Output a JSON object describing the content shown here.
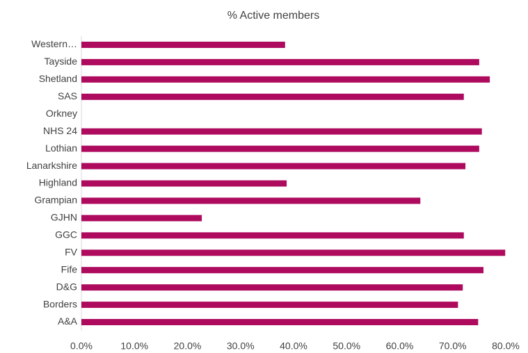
{
  "chart_data": {
    "type": "barh",
    "title": "% Active members",
    "categories": [
      "Western…",
      "Tayside",
      "Shetland",
      "SAS",
      "Orkney",
      "NHS 24",
      "Lothian",
      "Lanarkshire",
      "Highland",
      "Grampian",
      "GJHN",
      "GGC",
      "FV",
      "Fife",
      "D&G",
      "Borders",
      "A&A"
    ],
    "values": [
      38.4,
      75.0,
      77.0,
      72.1,
      null,
      75.5,
      75.0,
      72.4,
      38.7,
      63.9,
      22.7,
      72.1,
      79.9,
      75.8,
      71.9,
      71.0,
      74.8
    ],
    "color": "#ae0b5e",
    "xlim": [
      0,
      80
    ],
    "xticks": [
      {
        "value": 0,
        "label": "0.0%"
      },
      {
        "value": 10,
        "label": "10.0%"
      },
      {
        "value": 20,
        "label": "20.0%"
      },
      {
        "value": 30,
        "label": "30.0%"
      },
      {
        "value": 40,
        "label": "40.0%"
      },
      {
        "value": 50,
        "label": "50.0%"
      },
      {
        "value": 60,
        "label": "60.0%"
      },
      {
        "value": 70,
        "label": "70.0%"
      },
      {
        "value": 80,
        "label": "80.0%"
      }
    ],
    "grid": false
  }
}
